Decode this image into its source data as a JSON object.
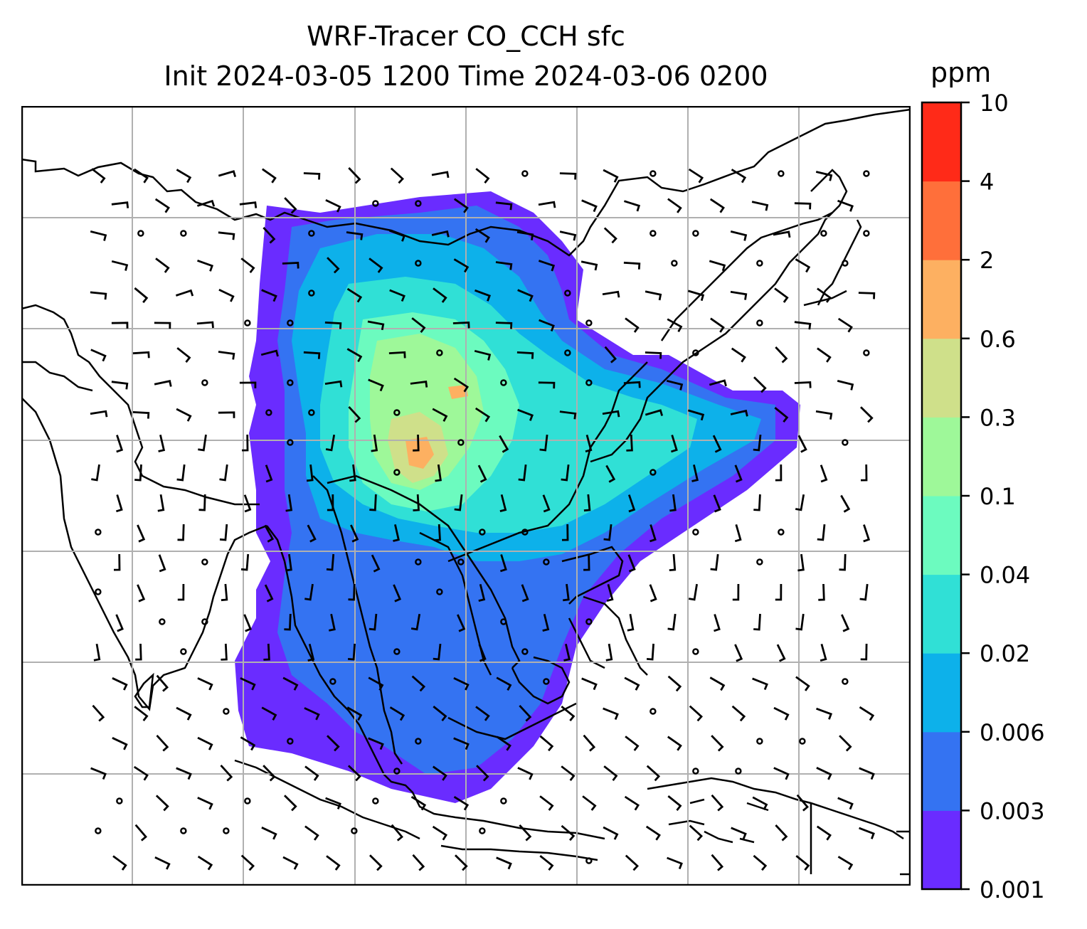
{
  "title": {
    "line1": "WRF-Tracer CO_CCH sfc",
    "line2": "Init 2024-03-05 1200 Time 2024-03-06 0200"
  },
  "colorbar": {
    "unit": "ppm",
    "ticks": [
      "0.001",
      "0.003",
      "0.006",
      "0.02",
      "0.04",
      "0.1",
      "0.3",
      "0.6",
      "2",
      "4",
      "10"
    ],
    "colors": [
      "#6a2cff",
      "#3473f2",
      "#0db1ea",
      "#30e0d6",
      "#6cfbbf",
      "#9ef899",
      "#cfe08a",
      "#fdb061",
      "#ff6f3a",
      "#ff2a18"
    ]
  },
  "map": {
    "gridlines": true,
    "coastline_color": "#000000",
    "wind_barbs": true
  }
}
